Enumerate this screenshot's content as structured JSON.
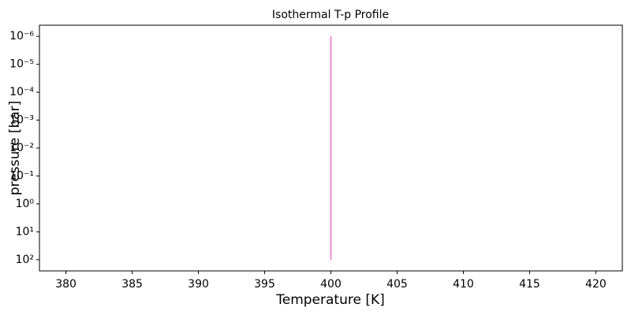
{
  "chart_data": {
    "type": "line",
    "title": "Isothermal T-p Profile",
    "x_label": "Temperature [K]",
    "y_label": "pressure [bar]",
    "series": [
      {
        "color": "#e377c2",
        "x": [
          400,
          400
        ],
        "values": [
          100,
          1e-06
        ]
      }
    ],
    "xlim": [
      378,
      422
    ],
    "xticks": [
      380,
      385,
      390,
      395,
      400,
      405,
      410,
      415,
      420
    ],
    "ylim": [
      251.19,
      3.981e-07
    ],
    "log_y": true,
    "yticks": [
      {
        "value": 100,
        "label": "10²"
      },
      {
        "value": 10,
        "label": "10¹"
      },
      {
        "value": 1,
        "label": "10⁰"
      },
      {
        "value": 0.1,
        "label": "10⁻¹"
      },
      {
        "value": 0.01,
        "label": "10⁻²"
      },
      {
        "value": 0.001,
        "label": "10⁻³"
      },
      {
        "value": 0.0001,
        "label": "10⁻⁴"
      },
      {
        "value": 1e-05,
        "label": "10⁻⁵"
      },
      {
        "value": 1e-06,
        "label": "10⁻⁶"
      }
    ]
  }
}
